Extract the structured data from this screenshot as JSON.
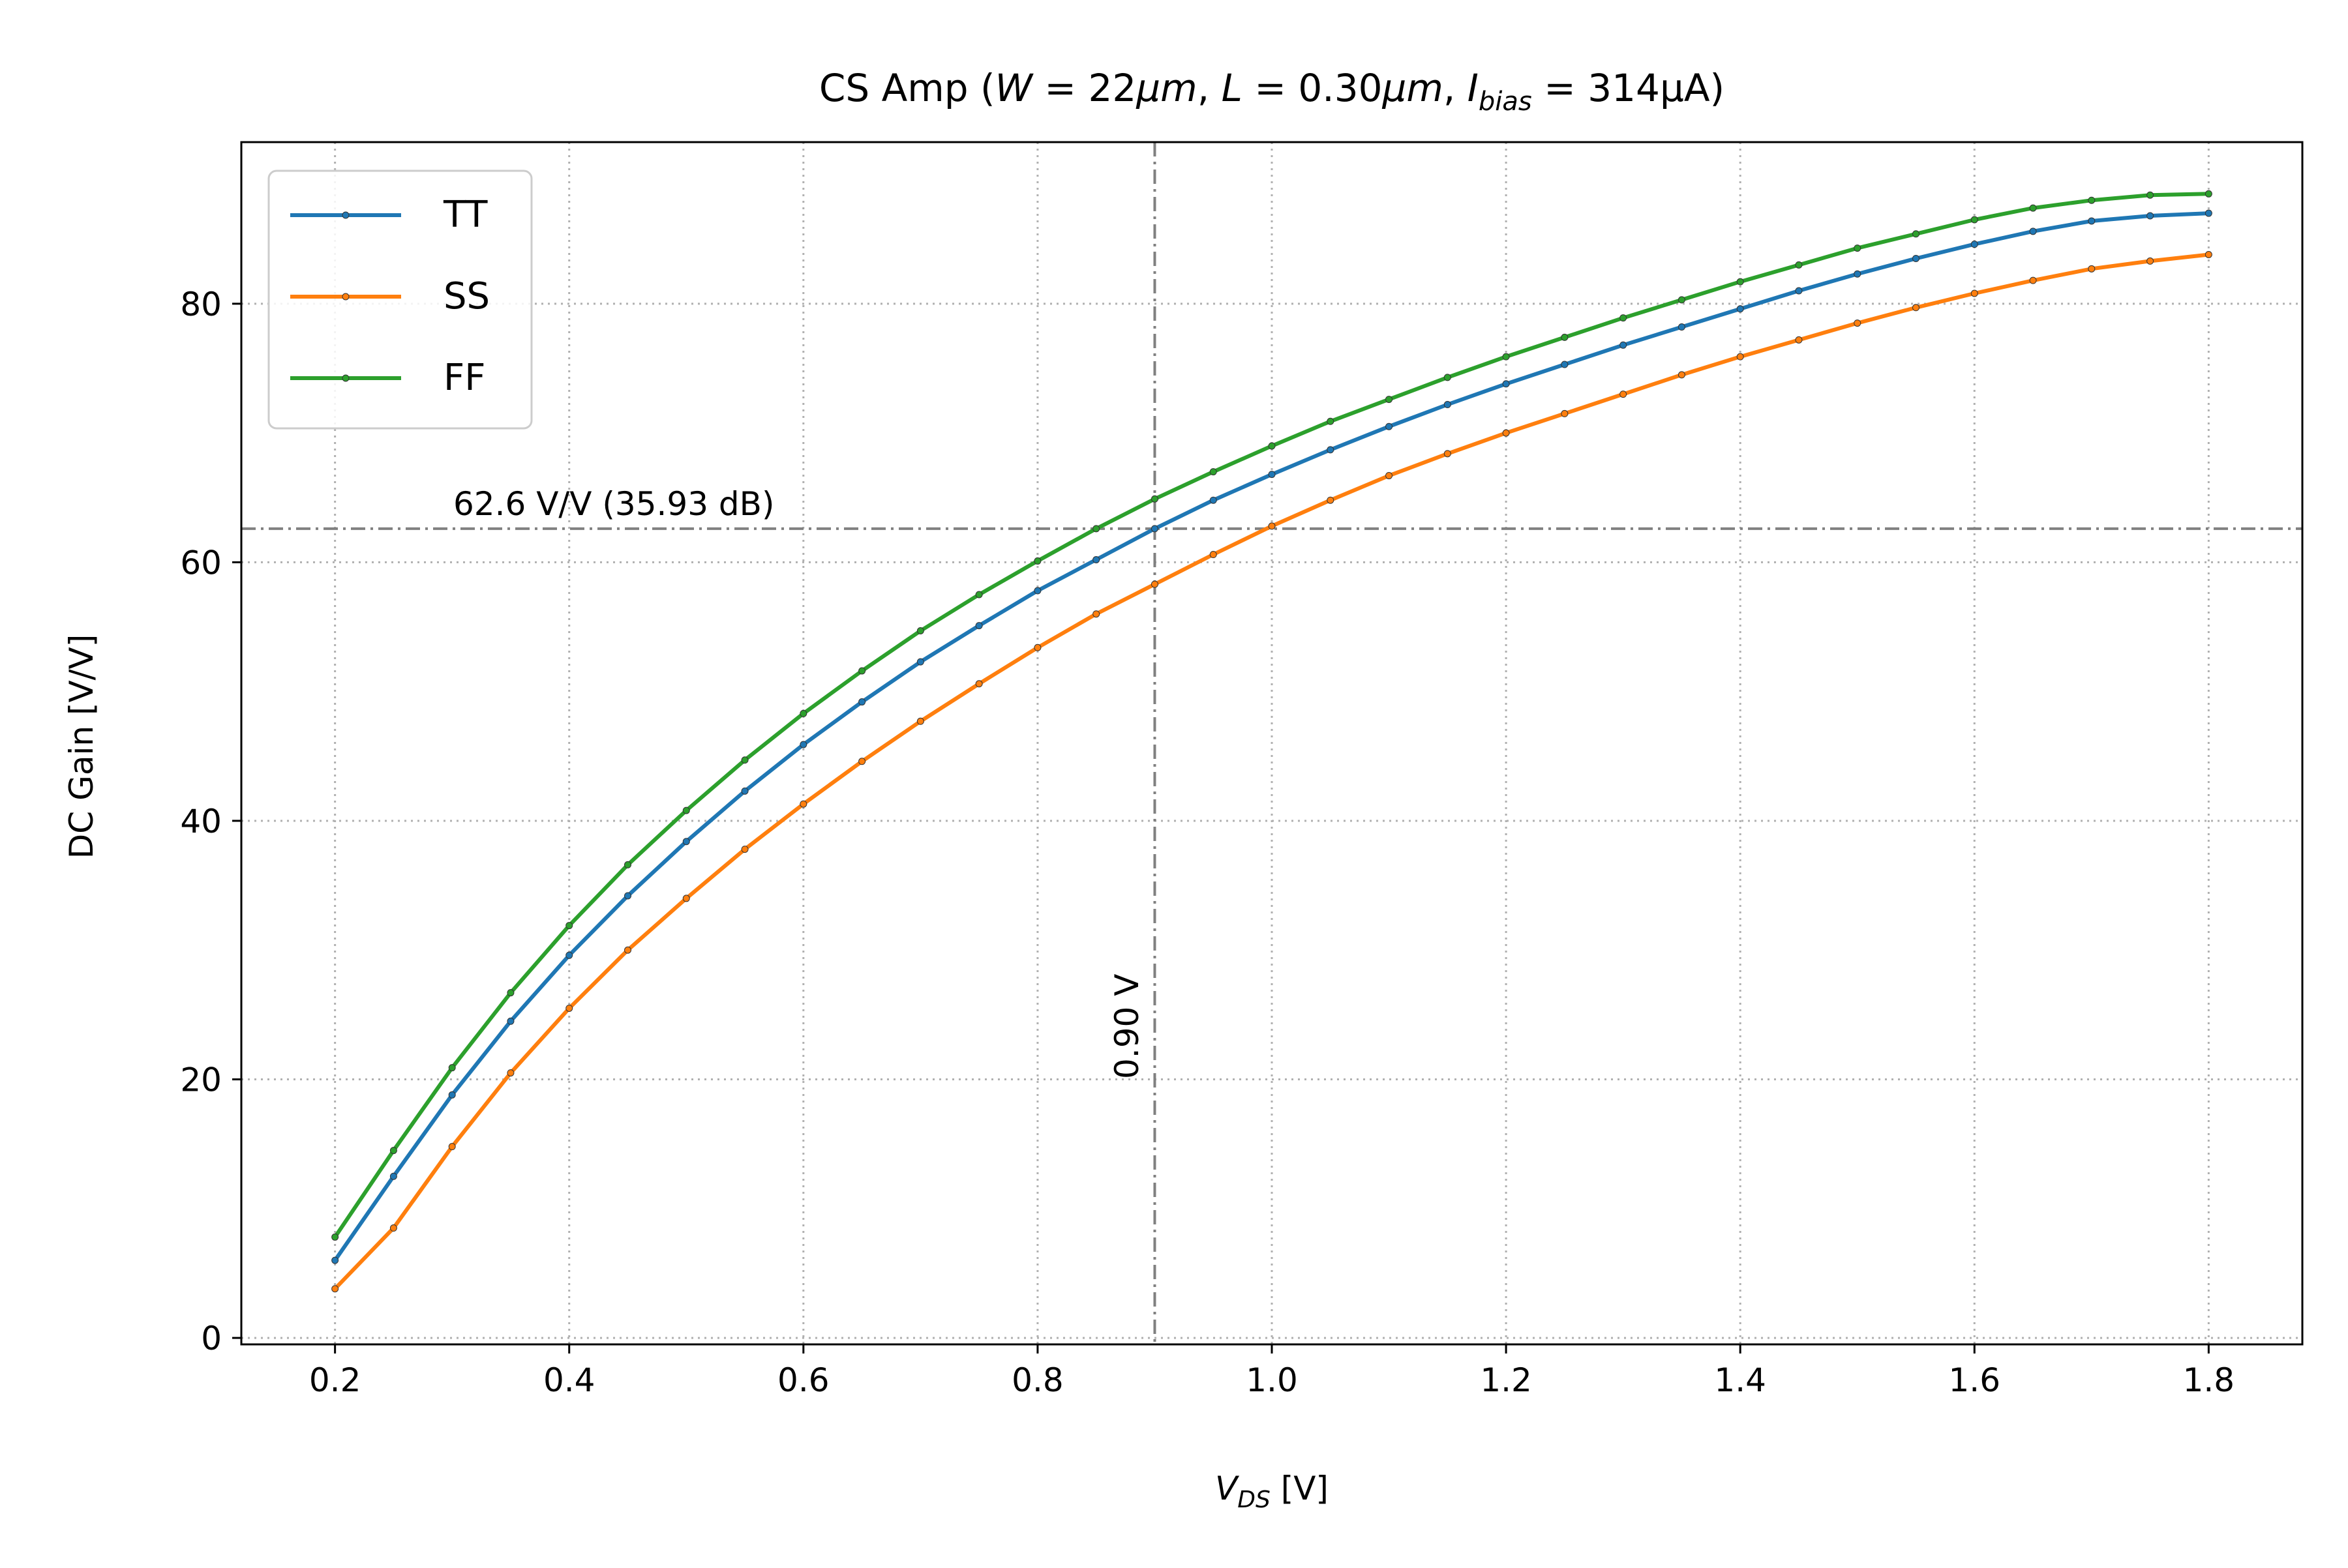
{
  "chart_data": {
    "type": "line",
    "title_parts": {
      "prefix": "CS Amp (",
      "w_var": "W",
      "w_val": " = 22",
      "w_unit": "μm",
      "sep1": ", ",
      "l_var": "L",
      "l_val": " = 0.30",
      "l_unit": "μm",
      "sep2": ", ",
      "i_var": "I",
      "i_sub": "bias",
      "i_val": " = 314μA)"
    },
    "xlabel_parts": {
      "var": "V",
      "sub": "DS",
      "unit": " [V]"
    },
    "ylabel": "DC Gain [V/V]",
    "xlim": [
      0.12,
      1.88
    ],
    "ylim": [
      -0.5,
      92.5
    ],
    "xticks": [
      0.2,
      0.4,
      0.6,
      0.8,
      1.0,
      1.2,
      1.4,
      1.6,
      1.8
    ],
    "xtick_labels": [
      "0.2",
      "0.4",
      "0.6",
      "0.8",
      "1.0",
      "1.2",
      "1.4",
      "1.6",
      "1.8"
    ],
    "yticks": [
      0,
      20,
      40,
      60,
      80
    ],
    "ytick_labels": [
      "0",
      "20",
      "40",
      "60",
      "80"
    ],
    "grid": true,
    "legend_position": "top-left",
    "x": [
      0.2,
      0.25,
      0.3,
      0.35,
      0.4,
      0.45,
      0.5,
      0.55,
      0.6,
      0.65,
      0.7,
      0.75,
      0.8,
      0.85,
      0.9,
      0.95,
      1.0,
      1.05,
      1.1,
      1.15,
      1.2,
      1.25,
      1.3,
      1.35,
      1.4,
      1.45,
      1.5,
      1.55,
      1.6,
      1.65,
      1.7,
      1.75,
      1.8
    ],
    "series": [
      {
        "name": "TT",
        "color": "#1f77b4",
        "values": [
          6.0,
          12.5,
          18.8,
          24.5,
          29.6,
          34.2,
          38.4,
          42.3,
          45.9,
          49.2,
          52.3,
          55.1,
          57.8,
          60.2,
          62.6,
          64.8,
          66.8,
          68.7,
          70.5,
          72.2,
          73.8,
          75.3,
          76.8,
          78.2,
          79.6,
          81.0,
          82.3,
          83.5,
          84.6,
          85.6,
          86.4,
          86.8,
          87.0
        ]
      },
      {
        "name": "SS",
        "color": "#ff7f0e",
        "values": [
          3.8,
          8.5,
          14.8,
          20.5,
          25.5,
          30.0,
          34.0,
          37.8,
          41.3,
          44.6,
          47.7,
          50.6,
          53.4,
          56.0,
          58.3,
          60.6,
          62.8,
          64.8,
          66.7,
          68.4,
          70.0,
          71.5,
          73.0,
          74.5,
          75.9,
          77.2,
          78.5,
          79.7,
          80.8,
          81.8,
          82.7,
          83.3,
          83.8
        ]
      },
      {
        "name": "FF",
        "color": "#2ca02c",
        "values": [
          7.8,
          14.5,
          20.9,
          26.7,
          31.9,
          36.6,
          40.8,
          44.7,
          48.3,
          51.6,
          54.7,
          57.5,
          60.1,
          62.6,
          64.9,
          67.0,
          69.0,
          70.9,
          72.6,
          74.3,
          75.9,
          77.4,
          78.9,
          80.3,
          81.7,
          83.0,
          84.3,
          85.4,
          86.5,
          87.4,
          88.0,
          88.4,
          88.5
        ]
      }
    ],
    "reference_lines": {
      "vline_x": 0.9,
      "vline_label": "0.90 V",
      "hline_y": 62.6,
      "hline_label": "62.6 V/V (35.93 dB)",
      "color": "#808080"
    }
  }
}
